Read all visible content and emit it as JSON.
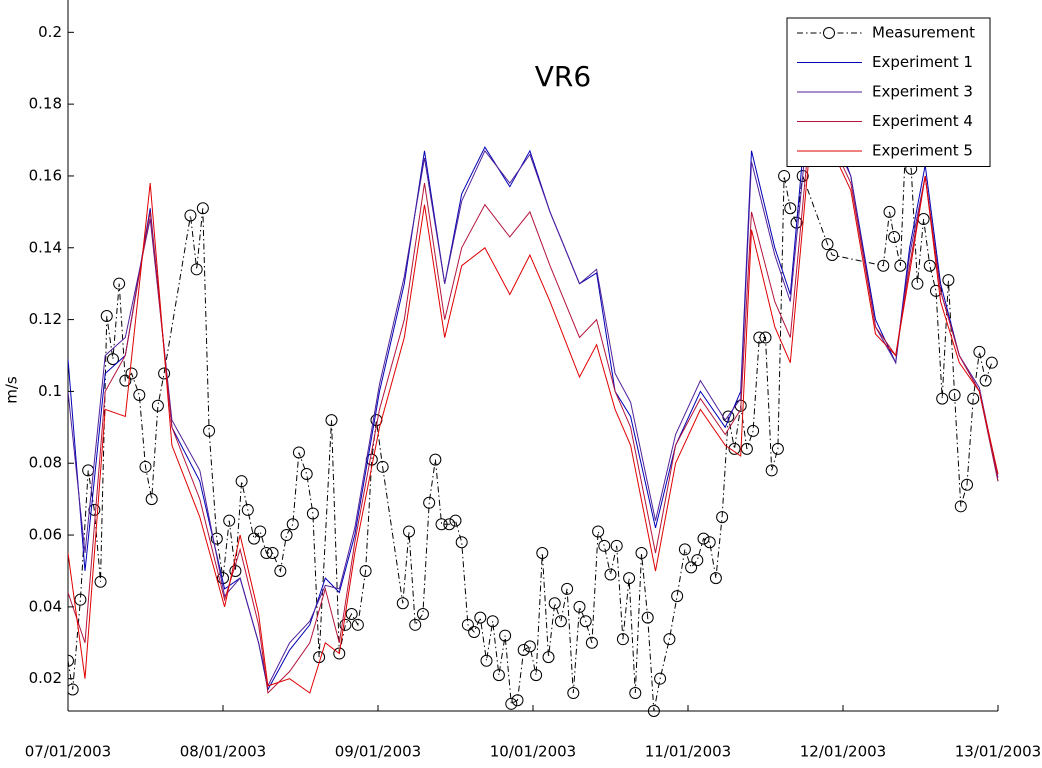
{
  "chart_data": {
    "type": "line",
    "title": "VR6",
    "ylabel": "m/s",
    "xlim": [
      0,
      6
    ],
    "ylim": [
      0.011,
      0.209
    ],
    "xticks": [
      {
        "value": 0,
        "label": "07/01/2003"
      },
      {
        "value": 1,
        "label": "08/01/2003"
      },
      {
        "value": 2,
        "label": "09/01/2003"
      },
      {
        "value": 3,
        "label": "10/01/2003"
      },
      {
        "value": 4,
        "label": "11/01/2003"
      },
      {
        "value": 5,
        "label": "12/01/2003"
      },
      {
        "value": 6,
        "label": "13/01/2003"
      }
    ],
    "yticks": [
      0.02,
      0.04,
      0.06,
      0.08,
      0.1,
      0.12,
      0.14,
      0.16,
      0.18,
      0.2
    ],
    "legend": "top-right",
    "grid": false,
    "series": [
      {
        "name": "Measurement",
        "color": "#000000",
        "marker": "circle",
        "x": [
          0,
          0.03,
          0.08,
          0.13,
          0.17,
          0.21,
          0.25,
          0.29,
          0.33,
          0.37,
          0.41,
          0.46,
          0.5,
          0.54,
          0.58,
          0.62,
          0.79,
          0.83,
          0.87,
          0.91,
          0.96,
          1.0,
          1.04,
          1.08,
          1.12,
          1.16,
          1.2,
          1.24,
          1.28,
          1.32,
          1.37,
          1.41,
          1.45,
          1.49,
          1.54,
          1.58,
          1.62,
          1.7,
          1.75,
          1.79,
          1.83,
          1.87,
          1.92,
          1.96,
          1.99,
          2.03,
          2.16,
          2.2,
          2.24,
          2.29,
          2.33,
          2.37,
          2.41,
          2.46,
          2.5,
          2.54,
          2.58,
          2.62,
          2.66,
          2.7,
          2.74,
          2.78,
          2.82,
          2.86,
          2.9,
          2.94,
          2.98,
          3.02,
          3.06,
          3.1,
          3.14,
          3.18,
          3.22,
          3.26,
          3.3,
          3.34,
          3.38,
          3.42,
          3.46,
          3.5,
          3.54,
          3.58,
          3.62,
          3.66,
          3.7,
          3.74,
          3.78,
          3.82,
          3.88,
          3.93,
          3.98,
          4.02,
          4.06,
          4.1,
          4.14,
          4.18,
          4.22,
          4.26,
          4.3,
          4.34,
          4.38,
          4.42,
          4.46,
          4.5,
          4.54,
          4.58,
          4.62,
          4.66,
          4.7,
          4.74,
          4.9,
          4.93,
          5.26,
          5.3,
          5.33,
          5.37,
          5.4,
          5.44,
          5.48,
          5.52,
          5.56,
          5.6,
          5.64,
          5.68,
          5.72,
          5.76,
          5.8,
          5.84,
          5.88,
          5.92,
          5.96
        ],
        "values": [
          0.025,
          0.017,
          0.042,
          0.078,
          0.067,
          0.047,
          0.121,
          0.109,
          0.13,
          0.103,
          0.105,
          0.099,
          0.079,
          0.07,
          0.096,
          0.105,
          0.149,
          0.134,
          0.151,
          0.089,
          0.059,
          0.048,
          0.064,
          0.05,
          0.075,
          0.067,
          0.059,
          0.061,
          0.055,
          0.055,
          0.05,
          0.06,
          0.063,
          0.083,
          0.077,
          0.066,
          0.026,
          0.092,
          0.027,
          0.035,
          0.038,
          0.035,
          0.05,
          0.081,
          0.092,
          0.079,
          0.041,
          0.061,
          0.035,
          0.038,
          0.069,
          0.081,
          0.063,
          0.063,
          0.064,
          0.058,
          0.035,
          0.033,
          0.037,
          0.025,
          0.036,
          0.021,
          0.032,
          0.013,
          0.014,
          0.028,
          0.029,
          0.021,
          0.055,
          0.026,
          0.041,
          0.036,
          0.045,
          0.016,
          0.04,
          0.036,
          0.03,
          0.061,
          0.057,
          0.049,
          0.057,
          0.031,
          0.048,
          0.016,
          0.055,
          0.037,
          0.011,
          0.02,
          0.031,
          0.043,
          0.056,
          0.051,
          0.053,
          0.059,
          0.058,
          0.048,
          0.065,
          0.093,
          0.084,
          0.096,
          0.084,
          0.089,
          0.115,
          0.115,
          0.078,
          0.084,
          0.16,
          0.151,
          0.147,
          0.16,
          0.141,
          0.138,
          0.135,
          0.15,
          0.143,
          0.135,
          0.165,
          0.162,
          0.13,
          0.148,
          0.135,
          0.128,
          0.098,
          0.131,
          0.099,
          0.068,
          0.074,
          0.098,
          0.111,
          0.103,
          0.108
        ]
      },
      {
        "name": "Experiment 1",
        "color": "#0000b4",
        "x": [
          0,
          0.11,
          0.24,
          0.37,
          0.53,
          0.67,
          0.85,
          1.01,
          1.11,
          1.23,
          1.29,
          1.43,
          1.56,
          1.66,
          1.75,
          1.85,
          2.01,
          2.17,
          2.3,
          2.43,
          2.54,
          2.69,
          2.85,
          2.98,
          3.11,
          3.3,
          3.41,
          3.53,
          3.63,
          3.79,
          3.92,
          4.08,
          4.24,
          4.34,
          4.41,
          4.56,
          4.66,
          4.79,
          4.92,
          5.05,
          5.21,
          5.34,
          5.43,
          5.53,
          5.63,
          5.75,
          5.88,
          6.0
        ],
        "values": [
          0.109,
          0.05,
          0.105,
          0.11,
          0.151,
          0.09,
          0.075,
          0.045,
          0.048,
          0.03,
          0.017,
          0.028,
          0.035,
          0.048,
          0.044,
          0.06,
          0.1,
          0.13,
          0.167,
          0.13,
          0.155,
          0.168,
          0.157,
          0.167,
          0.15,
          0.13,
          0.133,
          0.1,
          0.093,
          0.062,
          0.085,
          0.1,
          0.09,
          0.1,
          0.167,
          0.14,
          0.127,
          0.19,
          0.175,
          0.16,
          0.12,
          0.108,
          0.14,
          0.163,
          0.13,
          0.11,
          0.1,
          0.075
        ]
      },
      {
        "name": "Experiment 3",
        "color": "#50209a",
        "x": [
          0,
          0.11,
          0.24,
          0.37,
          0.53,
          0.67,
          0.85,
          1.01,
          1.11,
          1.23,
          1.29,
          1.43,
          1.56,
          1.66,
          1.75,
          1.85,
          2.01,
          2.17,
          2.3,
          2.43,
          2.54,
          2.69,
          2.85,
          2.98,
          3.11,
          3.3,
          3.41,
          3.53,
          3.63,
          3.79,
          3.92,
          4.08,
          4.24,
          4.34,
          4.41,
          4.56,
          4.66,
          4.79,
          4.92,
          5.05,
          5.21,
          5.34,
          5.43,
          5.53,
          5.63,
          5.75,
          5.88,
          6.0
        ],
        "values": [
          0.1,
          0.055,
          0.11,
          0.115,
          0.148,
          0.092,
          0.078,
          0.043,
          0.048,
          0.03,
          0.018,
          0.03,
          0.036,
          0.046,
          0.045,
          0.062,
          0.102,
          0.132,
          0.165,
          0.13,
          0.153,
          0.167,
          0.158,
          0.166,
          0.15,
          0.13,
          0.134,
          0.105,
          0.097,
          0.064,
          0.088,
          0.103,
          0.092,
          0.098,
          0.164,
          0.138,
          0.125,
          0.182,
          0.172,
          0.16,
          0.118,
          0.108,
          0.138,
          0.16,
          0.128,
          0.11,
          0.101,
          0.076
        ]
      },
      {
        "name": "Experiment 4",
        "color": "#b4143c",
        "x": [
          0,
          0.11,
          0.24,
          0.37,
          0.53,
          0.67,
          0.85,
          1.01,
          1.11,
          1.23,
          1.29,
          1.43,
          1.56,
          1.66,
          1.75,
          1.85,
          2.01,
          2.17,
          2.3,
          2.43,
          2.54,
          2.69,
          2.85,
          2.98,
          3.11,
          3.3,
          3.41,
          3.53,
          3.63,
          3.79,
          3.92,
          4.08,
          4.24,
          4.34,
          4.41,
          4.56,
          4.66,
          4.79,
          4.92,
          5.05,
          5.21,
          5.34,
          5.43,
          5.53,
          5.63,
          5.75,
          5.88,
          6.0
        ],
        "values": [
          0.044,
          0.03,
          0.1,
          0.11,
          0.15,
          0.09,
          0.07,
          0.042,
          0.056,
          0.035,
          0.016,
          0.022,
          0.03,
          0.045,
          0.03,
          0.058,
          0.095,
          0.12,
          0.158,
          0.12,
          0.14,
          0.152,
          0.143,
          0.15,
          0.135,
          0.115,
          0.12,
          0.1,
          0.09,
          0.055,
          0.085,
          0.098,
          0.088,
          0.095,
          0.15,
          0.125,
          0.115,
          0.175,
          0.17,
          0.158,
          0.118,
          0.11,
          0.135,
          0.16,
          0.128,
          0.11,
          0.1,
          0.075
        ]
      },
      {
        "name": "Experiment 5",
        "color": "#e00000",
        "x": [
          0,
          0.11,
          0.24,
          0.37,
          0.53,
          0.67,
          0.85,
          1.01,
          1.11,
          1.23,
          1.29,
          1.43,
          1.56,
          1.66,
          1.75,
          1.85,
          2.01,
          2.17,
          2.3,
          2.43,
          2.54,
          2.69,
          2.85,
          2.98,
          3.11,
          3.3,
          3.41,
          3.53,
          3.63,
          3.79,
          3.92,
          4.08,
          4.24,
          4.34,
          4.41,
          4.56,
          4.66,
          4.79,
          4.92,
          5.05,
          5.21,
          5.34,
          5.43,
          5.53,
          5.63,
          5.75,
          5.88,
          6.0
        ],
        "values": [
          0.055,
          0.02,
          0.095,
          0.093,
          0.158,
          0.085,
          0.065,
          0.04,
          0.06,
          0.038,
          0.018,
          0.02,
          0.016,
          0.03,
          0.027,
          0.055,
          0.09,
          0.115,
          0.152,
          0.115,
          0.135,
          0.14,
          0.127,
          0.138,
          0.125,
          0.104,
          0.113,
          0.095,
          0.085,
          0.05,
          0.08,
          0.095,
          0.085,
          0.082,
          0.145,
          0.118,
          0.108,
          0.17,
          0.168,
          0.156,
          0.116,
          0.11,
          0.133,
          0.16,
          0.125,
          0.108,
          0.1,
          0.077
        ]
      }
    ]
  }
}
